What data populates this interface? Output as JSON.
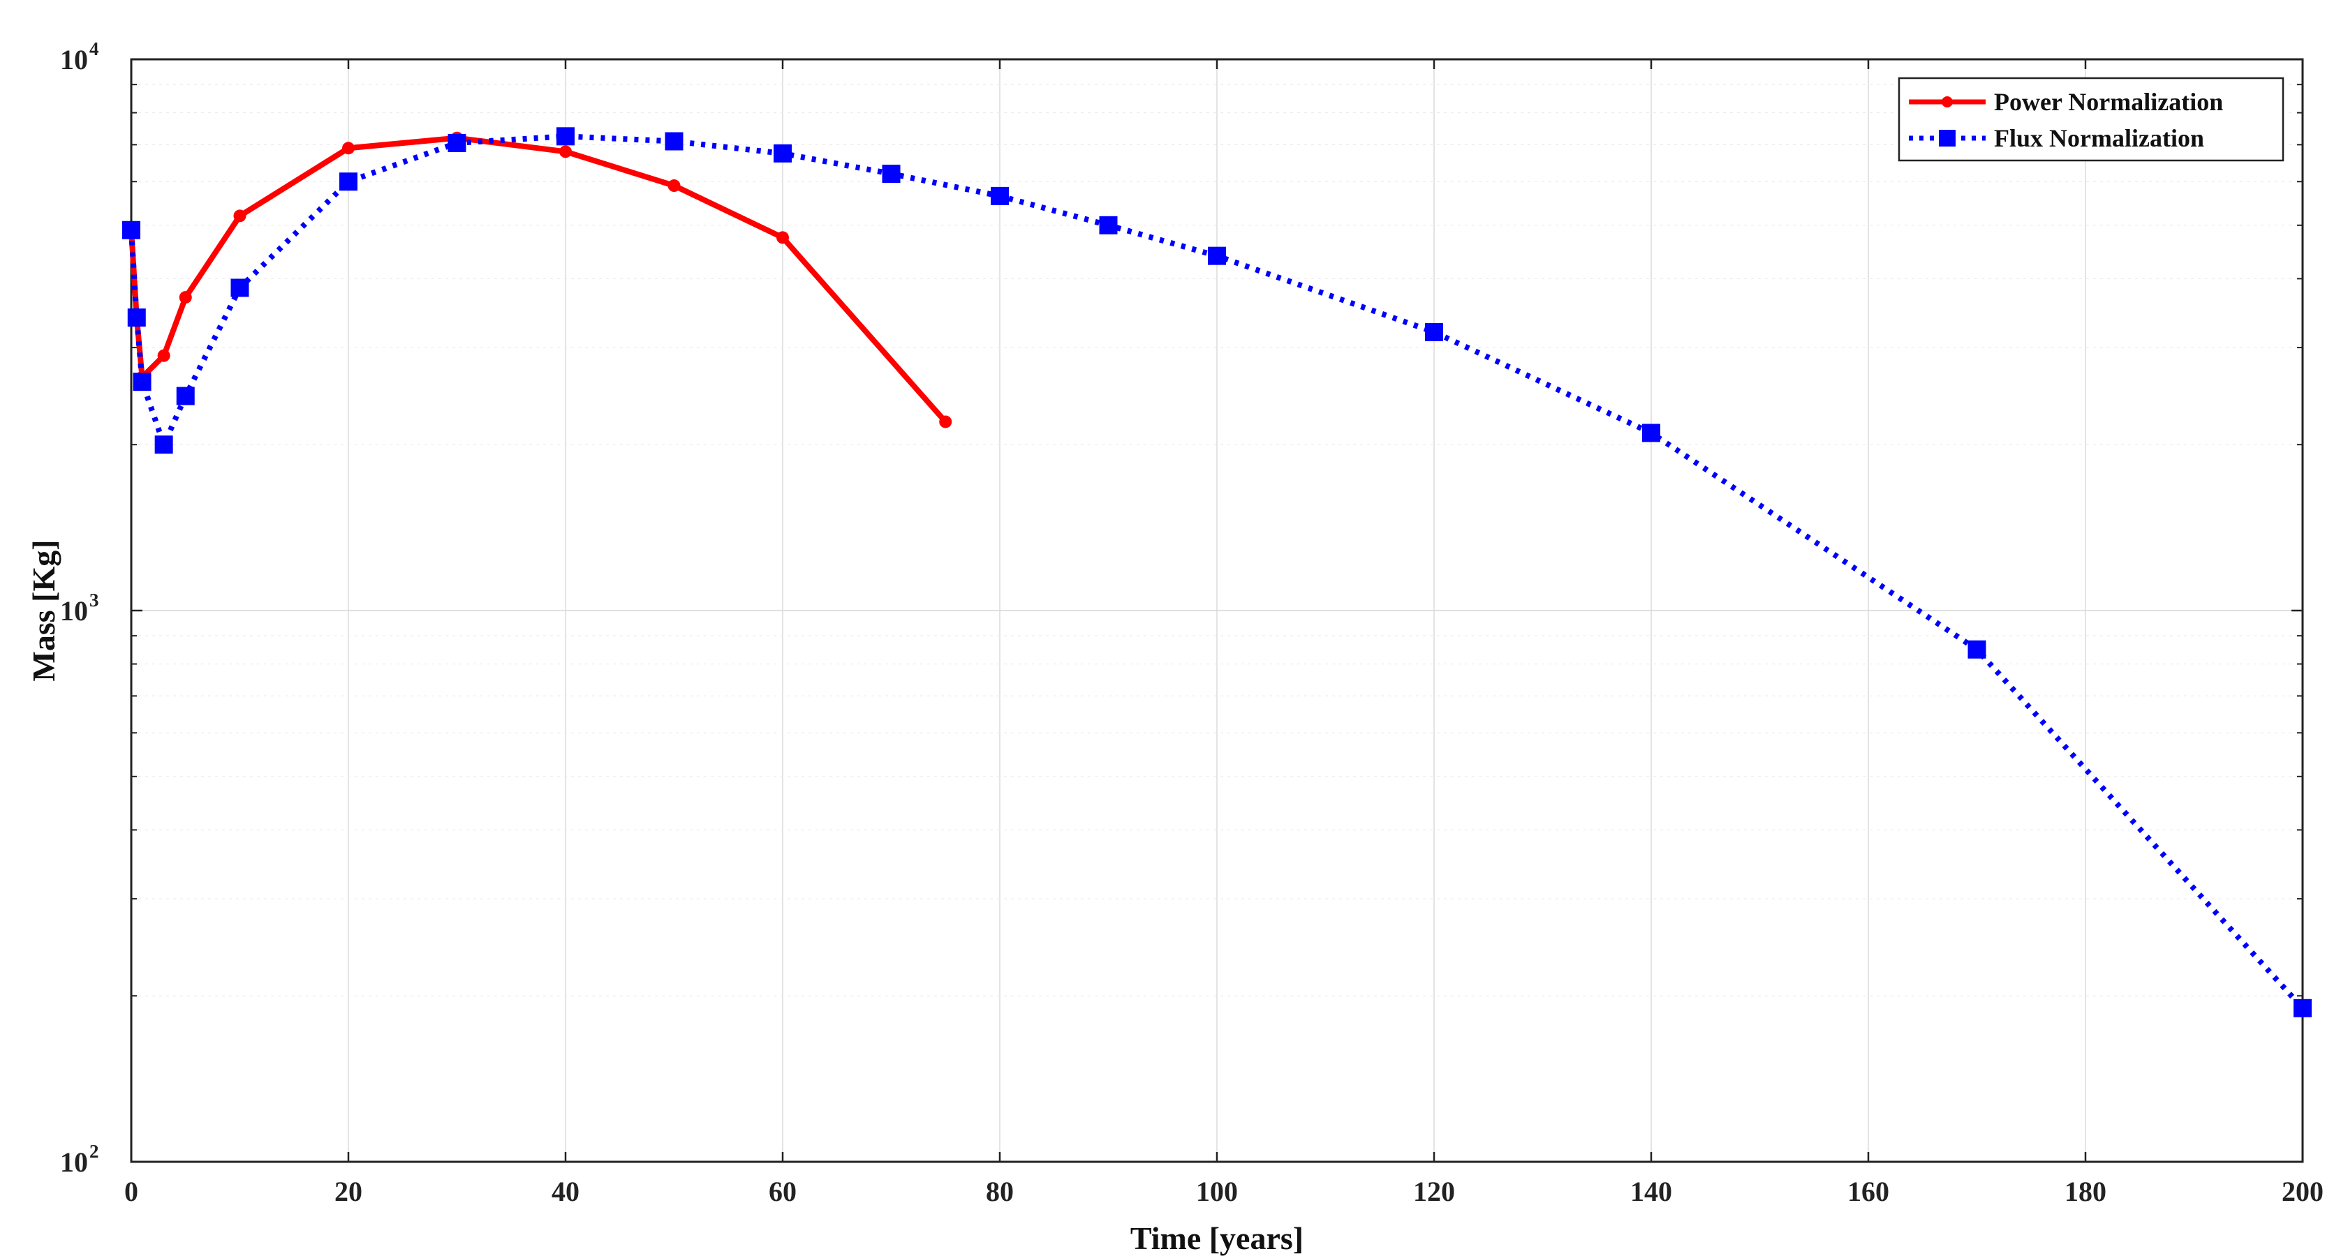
{
  "chart_data": {
    "type": "line",
    "title": "",
    "xlabel": "Time [years]",
    "ylabel": "Mass [Kg]",
    "xlim": [
      0,
      200
    ],
    "ylim": [
      100,
      10000
    ],
    "yscale": "log",
    "grid": true,
    "legend_position": "top-right",
    "x_ticks": [
      0,
      20,
      40,
      60,
      80,
      100,
      120,
      140,
      160,
      180,
      200
    ],
    "y_ticks": [
      {
        "base": "10",
        "exp": "2",
        "value": 100
      },
      {
        "base": "10",
        "exp": "3",
        "value": 1000
      },
      {
        "base": "10",
        "exp": "4",
        "value": 10000
      }
    ],
    "series": [
      {
        "name": "Power Normalization",
        "color": "#ff0000",
        "line_style": "solid",
        "marker": "circle",
        "x": [
          0,
          0.5,
          1,
          3,
          5,
          10,
          20,
          30,
          40,
          50,
          60,
          75
        ],
        "y": [
          4900,
          3400,
          2650,
          2900,
          3700,
          5200,
          6900,
          7200,
          6800,
          5900,
          4750,
          2200
        ]
      },
      {
        "name": "Flux Normalization",
        "color": "#0000ff",
        "line_style": "dotted",
        "marker": "square",
        "x": [
          0,
          0.5,
          1,
          3,
          5,
          10,
          20,
          30,
          40,
          50,
          60,
          70,
          80,
          90,
          100,
          120,
          140,
          170,
          200
        ],
        "y": [
          4900,
          3400,
          2600,
          2000,
          2450,
          3850,
          6000,
          7050,
          7250,
          7100,
          6750,
          6200,
          5650,
          5000,
          4400,
          3200,
          2100,
          850,
          190
        ]
      }
    ]
  }
}
